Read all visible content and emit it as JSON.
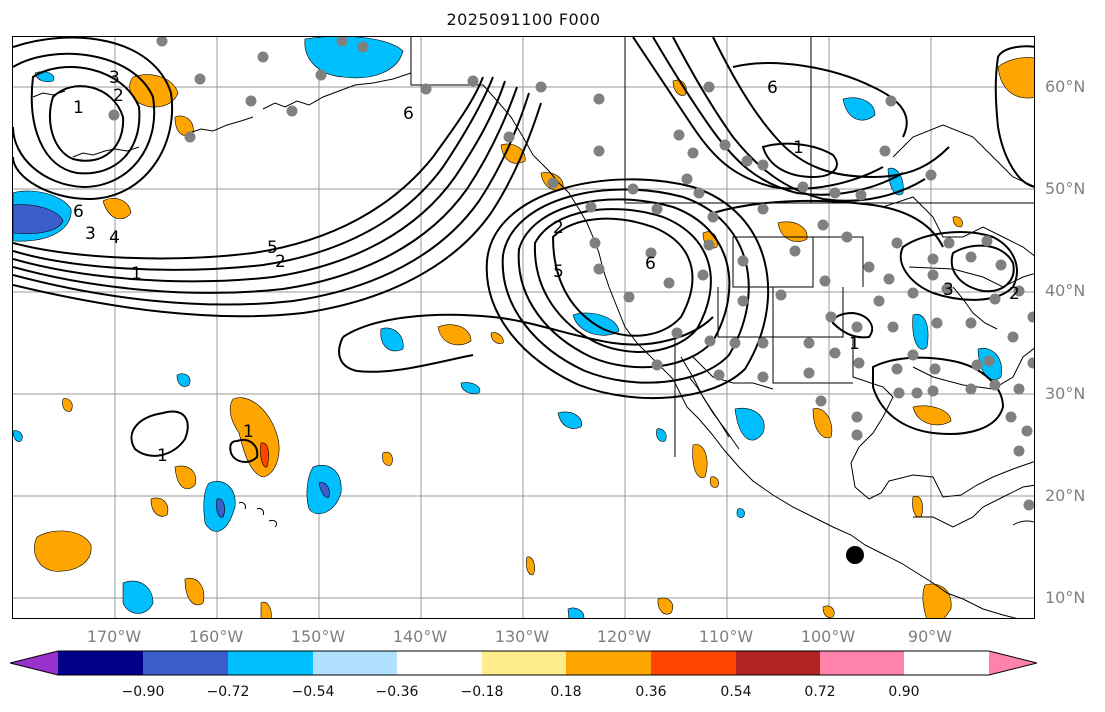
{
  "title": "2025091100 F000",
  "lat_labels": [
    "60°N",
    "50°N",
    "40°N",
    "30°N",
    "20°N",
    "10°N"
  ],
  "lon_labels": [
    "170°W",
    "160°W",
    "150°W",
    "140°W",
    "130°W",
    "120°W",
    "110°W",
    "100°W",
    "90°W"
  ],
  "colorbar": {
    "ticks": [
      "−0.90",
      "−0.72",
      "−0.54",
      "−0.36",
      "−0.18",
      "0.18",
      "0.36",
      "0.54",
      "0.72",
      "0.90"
    ],
    "colors": [
      "#9932cc",
      "#00008b",
      "#3a5fcd",
      "#00bfff",
      "#b0e2ff",
      "#ffffff",
      "#ffec8b",
      "#ffa500",
      "#ff4500",
      "#b22222",
      "#ff82ab"
    ]
  },
  "contour_labels": [
    "6",
    "1",
    "2",
    "5",
    "4",
    "3",
    "6",
    "1",
    "2",
    "5",
    "6",
    "1",
    "3",
    "1",
    "6",
    "2",
    "1",
    "1",
    "3",
    "2"
  ],
  "map": {
    "extent": {
      "lon": [
        -180,
        -80
      ],
      "lat": [
        8,
        65
      ]
    },
    "grid": true,
    "marker": {
      "type": "black-dot",
      "lon": -98.5,
      "lat": 14
    }
  }
}
